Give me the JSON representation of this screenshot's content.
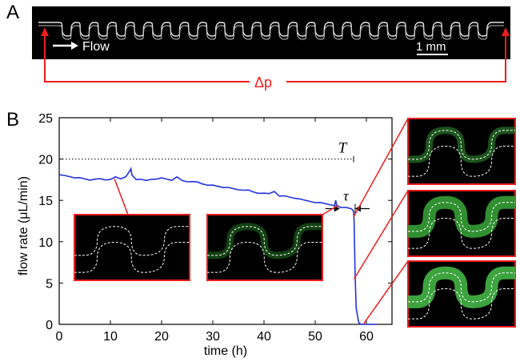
{
  "panel_a": {
    "letter": "A",
    "flow_label": "Flow",
    "scale_bar_label": "1 mm",
    "pressure_label": "Δp"
  },
  "panel_b": {
    "letter": "B",
    "T_label": "T",
    "tau_label": "τ"
  },
  "colors": {
    "flow_trace": "#2233dd",
    "annotation": "#ee1c1c",
    "fluor_green": "#38c83a",
    "channel_outline": "#ffffff",
    "dotted_reference": "#000000"
  },
  "chart_data": {
    "type": "line",
    "xlabel": "time (h)",
    "ylabel": "flow rate (μL/min)",
    "xlim": [
      0,
      65
    ],
    "ylim": [
      0,
      25
    ],
    "xticks": [
      0,
      10,
      20,
      30,
      40,
      50,
      60
    ],
    "yticks": [
      0,
      5,
      10,
      15,
      20,
      25
    ],
    "reference_line": {
      "y": 20,
      "x_start": 0,
      "x_end": 57.5,
      "style": "dotted"
    },
    "tau_interval": {
      "x_start": 54.8,
      "x_end": 57.8,
      "y": 14
    },
    "series": [
      {
        "x": [
          0,
          1,
          2,
          3,
          4,
          5,
          6,
          7,
          8,
          9,
          10,
          11,
          12,
          13,
          13.8,
          14,
          14.2,
          15,
          16,
          17,
          18,
          19,
          20,
          21,
          22,
          23,
          24,
          25,
          26,
          27,
          28,
          29,
          30,
          31,
          32,
          33,
          34,
          35,
          36,
          37,
          38,
          39,
          40,
          41,
          42,
          43,
          44,
          45,
          46,
          47,
          48,
          49,
          50,
          51,
          52,
          53,
          53.8,
          54,
          54.2,
          55,
          56,
          57,
          57.3,
          57.5,
          57.6,
          57.8,
          58,
          58.5,
          59,
          60,
          61,
          62
        ],
        "y": [
          18.1,
          18.0,
          17.9,
          17.8,
          17.7,
          17.6,
          17.5,
          17.5,
          17.6,
          17.5,
          17.6,
          17.8,
          17.6,
          17.9,
          18.5,
          18.8,
          18.1,
          17.6,
          17.5,
          17.4,
          17.6,
          17.5,
          17.7,
          17.6,
          17.5,
          17.8,
          17.4,
          17.3,
          17.2,
          17.2,
          17.0,
          16.9,
          16.8,
          16.7,
          16.6,
          16.5,
          16.4,
          16.3,
          16.3,
          16.2,
          16.0,
          15.9,
          15.8,
          15.8,
          16.1,
          15.6,
          15.5,
          15.4,
          15.3,
          15.1,
          15.0,
          14.9,
          14.8,
          14.7,
          14.6,
          14.5,
          14.3,
          15.0,
          14.4,
          14.2,
          14.1,
          14.0,
          13.9,
          13.6,
          12.5,
          6.0,
          2.0,
          0.2,
          0.0,
          0.0,
          0.0,
          0.0
        ]
      }
    ]
  }
}
